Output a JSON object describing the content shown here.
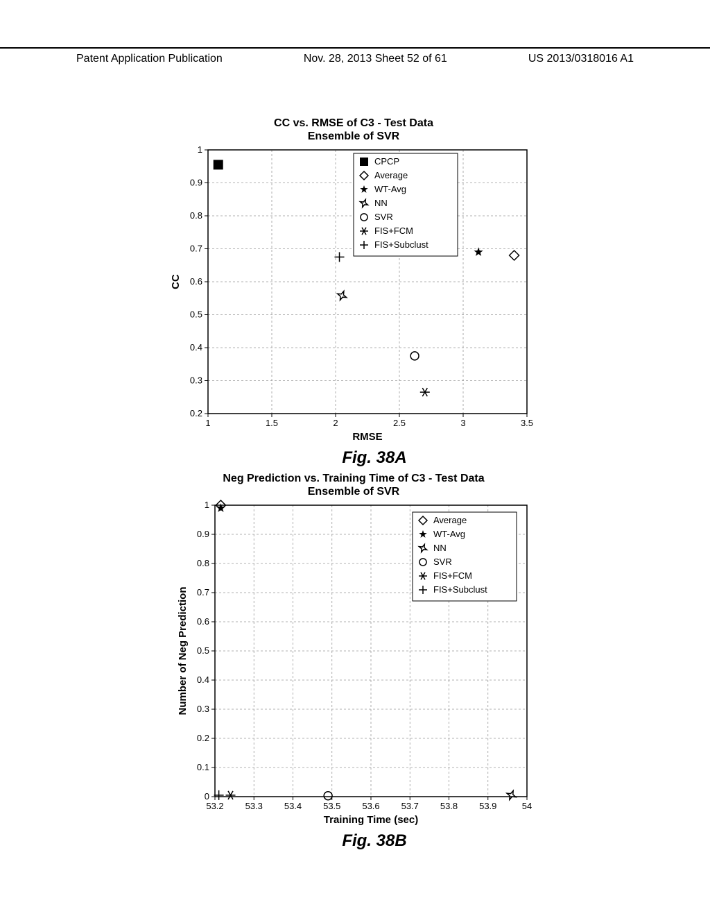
{
  "header": {
    "left": "Patent Application Publication",
    "center": "Nov. 28, 2013  Sheet 52 of 61",
    "right": "US 2013/0318016 A1"
  },
  "chartA": {
    "type": "scatter",
    "title_line1": "CC vs. RMSE of C3 - Test Data",
    "title_line2": "Ensemble of SVR",
    "xlabel": "RMSE",
    "ylabel": "CC",
    "xlim": [
      1,
      3.5
    ],
    "ylim": [
      0.2,
      1
    ],
    "xticks": [
      1,
      1.5,
      2,
      2.5,
      3,
      3.5
    ],
    "yticks": [
      0.2,
      0.3,
      0.4,
      0.5,
      0.6,
      0.7,
      0.8,
      0.9,
      1
    ],
    "grid_color": "#999999",
    "background_color": "#ffffff",
    "axis_color": "#000000",
    "tick_fontsize": 13,
    "label_fontsize": 15,
    "title_fontsize": 16,
    "legend": {
      "items": [
        {
          "marker": "filled-square",
          "label": "CPCP"
        },
        {
          "marker": "diamond",
          "label": "Average"
        },
        {
          "marker": "filled-star",
          "label": "WT-Avg"
        },
        {
          "marker": "open-star4",
          "label": "NN"
        },
        {
          "marker": "circle",
          "label": "SVR"
        },
        {
          "marker": "asterisk",
          "label": "FIS+FCM"
        },
        {
          "marker": "plus",
          "label": "FIS+Subclust"
        }
      ],
      "position": "upper-center"
    },
    "points": [
      {
        "marker": "filled-square",
        "x": 1.08,
        "y": 0.955
      },
      {
        "marker": "plus",
        "x": 2.03,
        "y": 0.675
      },
      {
        "marker": "open-star4",
        "x": 2.05,
        "y": 0.558
      },
      {
        "marker": "filled-star",
        "x": 3.12,
        "y": 0.69
      },
      {
        "marker": "diamond",
        "x": 3.4,
        "y": 0.68
      },
      {
        "marker": "circle",
        "x": 2.62,
        "y": 0.375
      },
      {
        "marker": "asterisk",
        "x": 2.7,
        "y": 0.265
      }
    ],
    "fig_label": "Fig. 38A"
  },
  "chartB": {
    "type": "scatter",
    "title_line1": "Neg Prediction vs. Training Time of C3 - Test Data",
    "title_line2": "Ensemble of SVR",
    "xlabel": "Training Time (sec)",
    "ylabel": "Number of Neg Prediction",
    "xlim": [
      53.2,
      54
    ],
    "ylim": [
      0,
      1
    ],
    "xticks": [
      53.2,
      53.3,
      53.4,
      53.5,
      53.6,
      53.7,
      53.8,
      53.9,
      54
    ],
    "yticks": [
      0,
      0.1,
      0.2,
      0.3,
      0.4,
      0.5,
      0.6,
      0.7,
      0.8,
      0.9,
      1
    ],
    "grid_color": "#999999",
    "background_color": "#ffffff",
    "axis_color": "#000000",
    "tick_fontsize": 13,
    "label_fontsize": 15,
    "title_fontsize": 16,
    "legend": {
      "items": [
        {
          "marker": "diamond",
          "label": "Average"
        },
        {
          "marker": "filled-star",
          "label": "WT-Avg"
        },
        {
          "marker": "open-star4",
          "label": "NN"
        },
        {
          "marker": "circle",
          "label": "SVR"
        },
        {
          "marker": "asterisk",
          "label": "FIS+FCM"
        },
        {
          "marker": "plus",
          "label": "FIS+Subclust"
        }
      ],
      "position": "upper-right"
    },
    "points": [
      {
        "marker": "diamond",
        "x": 53.215,
        "y": 1.0
      },
      {
        "marker": "filled-star",
        "x": 53.215,
        "y": 0.99
      },
      {
        "marker": "plus",
        "x": 53.21,
        "y": 0.005
      },
      {
        "marker": "asterisk",
        "x": 53.24,
        "y": 0.005
      },
      {
        "marker": "circle",
        "x": 53.49,
        "y": 0.003
      },
      {
        "marker": "open-star4",
        "x": 53.96,
        "y": 0.005
      }
    ],
    "fig_label": "Fig. 38B"
  }
}
